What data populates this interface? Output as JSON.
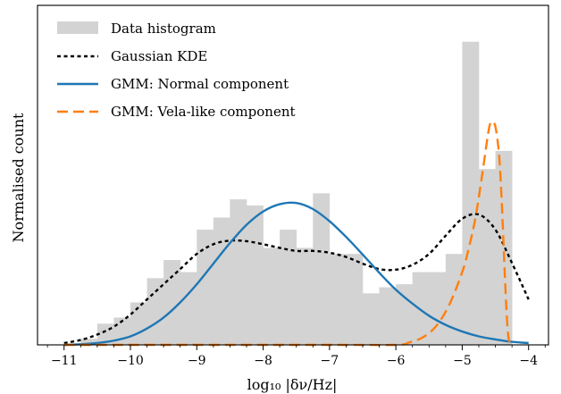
{
  "chart_data": {
    "type": "histogram",
    "xlabel": "log₁₀ |δν/Hz|",
    "ylabel": "Normalised count",
    "xlim": [
      -11.4,
      -3.7
    ],
    "ylim": [
      0,
      0.56
    ],
    "x_ticks": [
      -11,
      -10,
      -9,
      -8,
      -7,
      -6,
      -5,
      -4
    ],
    "x_tick_labels": [
      "−11",
      "−10",
      "−9",
      "−8",
      "−7",
      "−6",
      "−5",
      "−4"
    ],
    "legend_position": "top-left",
    "colors": {
      "histogram": "#d3d3d3",
      "kde": "#000000",
      "normal": "#1f77b4",
      "vela": "#ff7f0e"
    },
    "histogram": {
      "name": "Data histogram",
      "bin_edges": [
        -11.0,
        -10.75,
        -10.5,
        -10.25,
        -10.0,
        -9.75,
        -9.5,
        -9.25,
        -9.0,
        -8.75,
        -8.5,
        -8.25,
        -8.0,
        -7.75,
        -7.5,
        -7.25,
        -7.0,
        -6.75,
        -6.5,
        -6.25,
        -6.0,
        -5.75,
        -5.5,
        -5.25,
        -5.0,
        -4.75,
        -4.5,
        -4.25
      ],
      "values": [
        0.0,
        0.01,
        0.035,
        0.045,
        0.07,
        0.11,
        0.14,
        0.12,
        0.19,
        0.21,
        0.24,
        0.23,
        0.16,
        0.19,
        0.16,
        0.25,
        0.15,
        0.15,
        0.085,
        0.095,
        0.1,
        0.12,
        0.12,
        0.15,
        0.5,
        0.29,
        0.32
      ]
    },
    "series": [
      {
        "name": "Gaussian KDE",
        "x": [
          -11.0,
          -10.75,
          -10.5,
          -10.25,
          -10.0,
          -9.75,
          -9.5,
          -9.25,
          -9.0,
          -8.75,
          -8.5,
          -8.25,
          -8.0,
          -7.75,
          -7.5,
          -7.25,
          -7.0,
          -6.75,
          -6.5,
          -6.25,
          -6.0,
          -5.75,
          -5.5,
          -5.25,
          -5.0,
          -4.75,
          -4.5,
          -4.25,
          -4.0
        ],
        "y": [
          0.003,
          0.008,
          0.017,
          0.03,
          0.05,
          0.075,
          0.1,
          0.125,
          0.15,
          0.166,
          0.172,
          0.171,
          0.166,
          0.16,
          0.155,
          0.155,
          0.152,
          0.145,
          0.134,
          0.125,
          0.124,
          0.132,
          0.15,
          0.18,
          0.208,
          0.215,
          0.19,
          0.135,
          0.075
        ]
      },
      {
        "name": "GMM: Normal component",
        "x": [
          -11.0,
          -10.75,
          -10.5,
          -10.25,
          -10.0,
          -9.75,
          -9.5,
          -9.25,
          -9.0,
          -8.75,
          -8.5,
          -8.25,
          -8.0,
          -7.75,
          -7.5,
          -7.25,
          -7.0,
          -6.75,
          -6.5,
          -6.25,
          -6.0,
          -5.75,
          -5.5,
          -5.25,
          -5.0,
          -4.75,
          -4.5,
          -4.25,
          -4.0
        ],
        "y": [
          0.0,
          0.001,
          0.003,
          0.007,
          0.014,
          0.027,
          0.045,
          0.07,
          0.1,
          0.134,
          0.168,
          0.198,
          0.22,
          0.232,
          0.234,
          0.224,
          0.204,
          0.178,
          0.149,
          0.119,
          0.091,
          0.068,
          0.048,
          0.033,
          0.022,
          0.014,
          0.009,
          0.005,
          0.003
        ]
      },
      {
        "name": "GMM: Vela-like component",
        "x": [
          -11.0,
          -7.0,
          -6.0,
          -5.8,
          -5.6,
          -5.4,
          -5.2,
          -5.0,
          -4.9,
          -4.8,
          -4.7,
          -4.6,
          -4.55,
          -4.5,
          -4.45,
          -4.42,
          -4.39,
          -4.36,
          -4.33,
          -4.3,
          -4.25
        ],
        "y": [
          0.0,
          0.0,
          0.0,
          0.004,
          0.012,
          0.03,
          0.065,
          0.12,
          0.16,
          0.21,
          0.28,
          0.355,
          0.368,
          0.36,
          0.32,
          0.27,
          0.2,
          0.12,
          0.05,
          0.01,
          0.0
        ]
      }
    ]
  }
}
